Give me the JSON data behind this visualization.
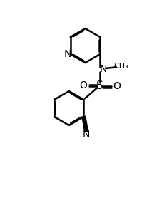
{
  "bg_color": "#ffffff",
  "line_color": "#000000",
  "bond_width": 1.8,
  "dbo": 0.055,
  "figsize": [
    2.07,
    2.88
  ],
  "dpi": 100,
  "xlim": [
    -4.0,
    5.0
  ],
  "ylim": [
    -5.5,
    5.5
  ]
}
